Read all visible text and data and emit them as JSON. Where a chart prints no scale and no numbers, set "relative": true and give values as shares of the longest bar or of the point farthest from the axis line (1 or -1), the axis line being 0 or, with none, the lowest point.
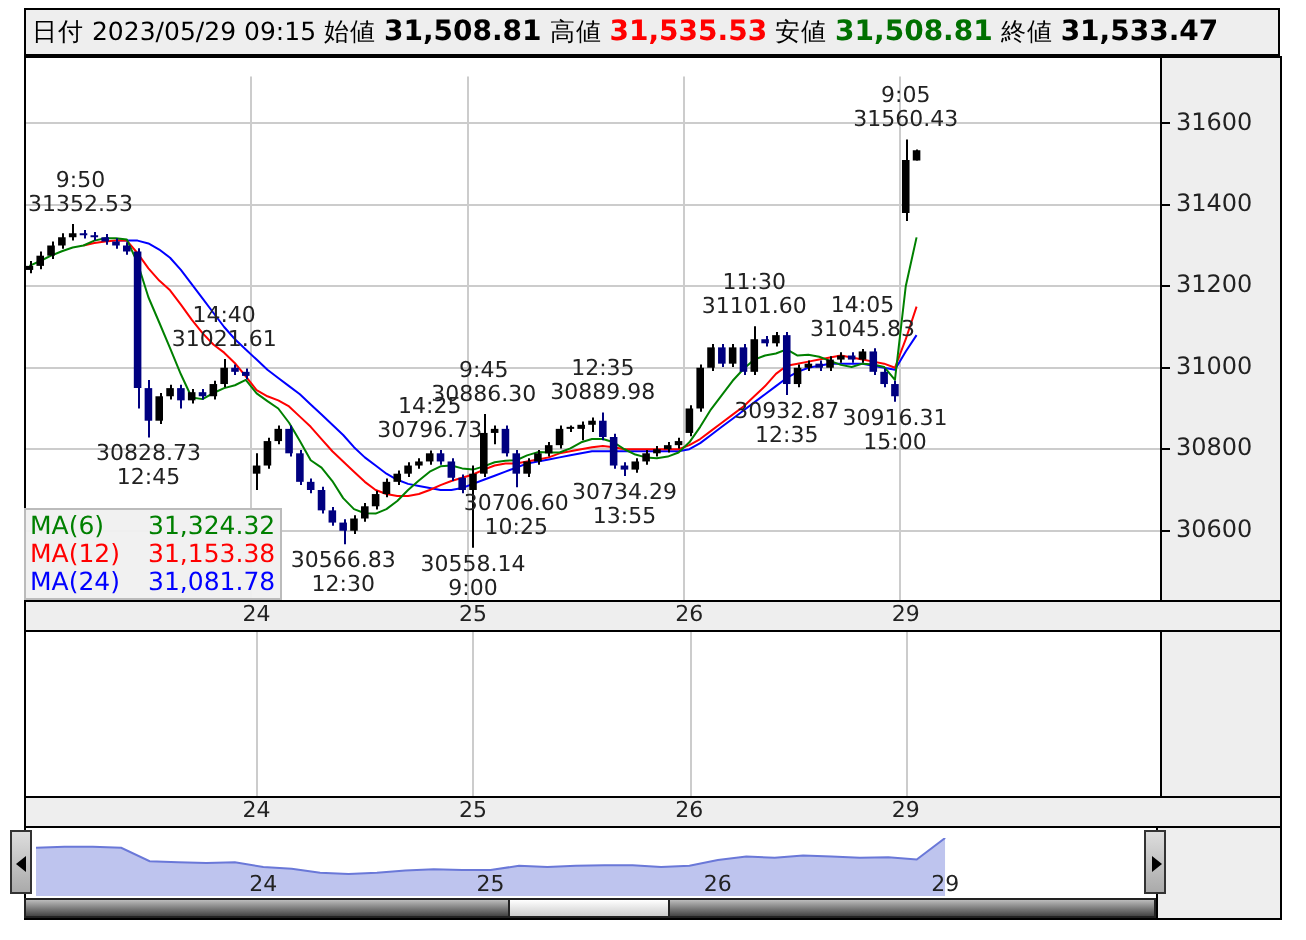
{
  "chart_data": [
    {
      "type": "candlestick",
      "title": "日付 2023/05/29 09:15",
      "annotations": [
        "始値 31,508.81",
        "高値 31,535.53",
        "安値 31,508.81",
        "終値 31,533.47",
        {
          "text": "9:50\n31352.53",
          "y": 31352.53
        },
        {
          "text": "30828.73\n12:45",
          "y": 30828.73
        },
        {
          "text": "14:40\n31021.61",
          "y": 31021.61
        },
        {
          "text": "30566.83\n12:30",
          "y": 30566.83
        },
        {
          "text": "14:25\n30796.73",
          "y": 30796.73
        },
        {
          "text": "30558.14\n9:00",
          "y": 30558.14
        },
        {
          "text": "9:45\n30886.30",
          "y": 30886.3
        },
        {
          "text": "30706.60\n10:25",
          "y": 30706.6
        },
        {
          "text": "12:35\n30889.98",
          "y": 30889.98
        },
        {
          "text": "30734.29\n13:55",
          "y": 30734.29
        },
        {
          "text": "11:30\n31101.60",
          "y": 31101.6
        },
        {
          "text": "30932.87\n12:35",
          "y": 30932.87
        },
        {
          "text": "14:05\n31045.83",
          "y": 31045.83
        },
        {
          "text": "30916.31\n15:00",
          "y": 30916.31
        },
        {
          "text": "9:05\n31560.43",
          "y": 31560.43
        }
      ],
      "categories": [
        null,
        null,
        null,
        null,
        null,
        null,
        null,
        null,
        null,
        null,
        null,
        null,
        null,
        null,
        null,
        null,
        null,
        null,
        null,
        null,
        null,
        "24",
        null,
        null,
        null,
        null,
        null,
        null,
        null,
        null,
        null,
        null,
        null,
        null,
        null,
        null,
        null,
        null,
        null,
        null,
        null,
        "25",
        null,
        null,
        null,
        null,
        null,
        null,
        null,
        null,
        null,
        null,
        null,
        null,
        null,
        null,
        null,
        null,
        null,
        null,
        null,
        "26",
        null,
        null,
        null,
        null,
        null,
        null,
        null,
        null,
        null,
        null,
        null,
        null,
        null,
        null,
        null,
        null,
        null,
        null,
        null,
        "29",
        null,
        null,
        null,
        null,
        null,
        null,
        null,
        null,
        null,
        null,
        null,
        null,
        null,
        null,
        null,
        null,
        null,
        null,
        null,
        null,
        null,
        null,
        null
      ],
      "colors": [
        "#000000",
        "#000000",
        "#000000",
        "#000000",
        "#000000",
        "#000080",
        "#000080",
        "#000080",
        "#000080",
        "#000080",
        "#000080",
        "#000080",
        "#000000",
        "#000000",
        "#000080",
        "#000000",
        "#000080",
        "#000000",
        "#000000",
        "#000080",
        "#000080",
        "#000000",
        "#000000",
        "#000000",
        "#000080",
        "#000080",
        "#000080",
        "#000080",
        "#000080",
        "#000080",
        "#000000",
        "#000000",
        "#000000",
        "#000000",
        "#000000",
        "#000000",
        "#000000",
        "#000000",
        "#000080",
        "#000080",
        "#000080",
        "#000000",
        "#000000",
        "#000000",
        "#000080",
        "#000080",
        "#000000",
        "#000000",
        "#000000",
        "#000000",
        "#000000",
        "#000000",
        "#000000",
        "#000080",
        "#000080",
        "#000080",
        "#000000",
        "#000000",
        "#000000",
        "#000000",
        "#000000",
        "#000000",
        "#000000",
        "#000000",
        "#000080",
        "#000000",
        "#000080",
        "#000000",
        "#000080",
        "#000000",
        "#000080",
        "#000000",
        "#000000",
        "#000080",
        "#000000",
        "#000000",
        "#000080",
        "#000000",
        "#000080",
        "#000080",
        "#000080",
        "#000000",
        "#000000",
        null,
        null,
        null,
        null,
        null,
        null,
        null,
        null,
        null,
        null,
        null,
        null,
        null,
        null,
        null,
        null,
        null,
        null,
        null,
        null,
        null,
        null
      ],
      "ohlc": [
        [
          31240,
          31262,
          31232,
          31250
        ],
        [
          31250,
          31285,
          31242,
          31275
        ],
        [
          31275,
          31310,
          31267,
          31300
        ],
        [
          31300,
          31330,
          31292,
          31320
        ],
        [
          31320,
          31352.53,
          31312,
          31330
        ],
        [
          31330,
          31338,
          31317,
          31325
        ],
        [
          31325,
          31333,
          31312,
          31320
        ],
        [
          31320,
          31328,
          31302,
          31310
        ],
        [
          31310,
          31318,
          31292,
          31300
        ],
        [
          31300,
          31308,
          31277,
          31285
        ],
        [
          31285,
          31293,
          30900,
          30950
        ],
        [
          30950,
          30970,
          30828.73,
          30870
        ],
        [
          30870,
          30938,
          30862,
          30930
        ],
        [
          30930,
          30958,
          30922,
          30950
        ],
        [
          30950,
          30958,
          30900,
          30920
        ],
        [
          30920,
          30948,
          30912,
          30940
        ],
        [
          30940,
          30948,
          30922,
          30930
        ],
        [
          30930,
          30968,
          30922,
          30960
        ],
        [
          30960,
          31021.61,
          30952,
          31000
        ],
        [
          31000,
          31008,
          30982,
          30990
        ],
        [
          30990,
          30998,
          30972,
          30980
        ],
        [
          30740,
          30790,
          30700,
          30760
        ],
        [
          30760,
          30828,
          30752,
          30820
        ],
        [
          30820,
          30858,
          30812,
          30850
        ],
        [
          30850,
          30858,
          30782,
          30790
        ],
        [
          30790,
          30798,
          30712,
          30720
        ],
        [
          30720,
          30728,
          30692,
          30700
        ],
        [
          30700,
          30708,
          30642,
          30650
        ],
        [
          30650,
          30658,
          30612,
          30620
        ],
        [
          30620,
          30628,
          30566.83,
          30600
        ],
        [
          30600,
          30638,
          30592,
          30630
        ],
        [
          30630,
          30668,
          30622,
          30660
        ],
        [
          30660,
          30698,
          30652,
          30690
        ],
        [
          30690,
          30728,
          30682,
          30720
        ],
        [
          30720,
          30748,
          30712,
          30740
        ],
        [
          30740,
          30768,
          30732,
          30760
        ],
        [
          30760,
          30778,
          30752,
          30770
        ],
        [
          30770,
          30796.73,
          30762,
          30790
        ],
        [
          30790,
          30798,
          30762,
          30770
        ],
        [
          30770,
          30778,
          30722,
          30730
        ],
        [
          30730,
          30738,
          30692,
          30700
        ],
        [
          30700,
          30760,
          30558.14,
          30740
        ],
        [
          30740,
          30886.3,
          30732,
          30840
        ],
        [
          30840,
          30858,
          30812,
          30850
        ],
        [
          30850,
          30858,
          30782,
          30790
        ],
        [
          30790,
          30798,
          30706.6,
          30740
        ],
        [
          30740,
          30778,
          30732,
          30770
        ],
        [
          30770,
          30798,
          30762,
          30790
        ],
        [
          30790,
          30818,
          30782,
          30810
        ],
        [
          30810,
          30858,
          30802,
          30850
        ],
        [
          30850,
          30858,
          30842,
          30850
        ],
        [
          30850,
          30868,
          30822,
          30860
        ],
        [
          30860,
          30878,
          30842,
          30870
        ],
        [
          30870,
          30889.98,
          30822,
          30830
        ],
        [
          30830,
          30838,
          30752,
          30760
        ],
        [
          30760,
          30768,
          30734.29,
          30750
        ],
        [
          30750,
          30778,
          30742,
          30770
        ],
        [
          30770,
          30798,
          30762,
          30790
        ],
        [
          30790,
          30808,
          30782,
          30800
        ],
        [
          30800,
          30818,
          30792,
          30810
        ],
        [
          30810,
          30828,
          30802,
          30820
        ],
        [
          30840,
          30908,
          30832,
          30900
        ],
        [
          30900,
          31008,
          30892,
          31000
        ],
        [
          31000,
          31058,
          30992,
          31050
        ],
        [
          31050,
          31058,
          31002,
          31010
        ],
        [
          31010,
          31058,
          31002,
          31050
        ],
        [
          31050,
          31058,
          30982,
          30990
        ],
        [
          30990,
          31101.6,
          30982,
          31070
        ],
        [
          31070,
          31078,
          31052,
          31060
        ],
        [
          31060,
          31088,
          31052,
          31080
        ],
        [
          31080,
          31088,
          30932.87,
          30960
        ],
        [
          30960,
          31008,
          30952,
          31000
        ],
        [
          31000,
          31018,
          30992,
          31010
        ],
        [
          31010,
          31018,
          30992,
          31000
        ],
        [
          31000,
          31028,
          30992,
          31020
        ],
        [
          31020,
          31038,
          31012,
          31030
        ],
        [
          31030,
          31038,
          31012,
          31020
        ],
        [
          31020,
          31045.83,
          31012,
          31040
        ],
        [
          31040,
          31048,
          30982,
          30990
        ],
        [
          30990,
          30998,
          30952,
          30960
        ],
        [
          30960,
          30968,
          30916.31,
          30930
        ],
        [
          31380,
          31560.43,
          31360,
          31510
        ],
        [
          31508.81,
          31535.53,
          31508.81,
          31533.47
        ],
        null,
        null,
        null,
        null,
        null,
        null,
        null,
        null,
        null,
        null,
        null,
        null,
        null,
        null,
        null,
        null,
        null,
        null,
        null,
        null,
        null,
        null
      ],
      "series": [
        {
          "name": "MA(6) 31,324.32",
          "type": "line",
          "color": "#008000",
          "values": [
            31250,
            31262,
            31275,
            31286,
            31295,
            31300,
            31312,
            31318,
            31318,
            31315,
            31257,
            31173,
            31111,
            31048,
            30984,
            30927,
            30923,
            30938,
            30950,
            30957,
            30970,
            30937,
            30918,
            30900,
            30865,
            30820,
            30773,
            30755,
            30722,
            30680,
            30653,
            30643,
            30642,
            30653,
            30673,
            30700,
            30723,
            30745,
            30758,
            30760,
            30753,
            30750,
            30758,
            30768,
            30772,
            30773,
            30785,
            30793,
            30792,
            30792,
            30802,
            30817,
            30825,
            30825,
            30817,
            30800,
            30787,
            30780,
            30778,
            30782,
            30792,
            30817,
            30855,
            30898,
            30933,
            30968,
            30997,
            31020,
            31030,
            31035,
            31045,
            31030,
            31032,
            31027,
            31017,
            31007,
            31002,
            31010,
            31008,
            31002,
            30970,
            31200,
            31320,
            null,
            null,
            null,
            null,
            null,
            null,
            null,
            null,
            null,
            null,
            null,
            null,
            null,
            null,
            null,
            null,
            null,
            null,
            null,
            null,
            null,
            null
          ]
        },
        {
          "name": "MA(12) 31,153.38",
          "type": "line",
          "color": "#ff0000",
          "values": [
            null,
            null,
            null,
            null,
            null,
            31300,
            31306,
            31310,
            31312,
            31312,
            31281,
            31244,
            31214,
            31190,
            31155,
            31118,
            31085,
            31057,
            31037,
            31011,
            30979,
            30945,
            30930,
            30920,
            30905,
            30880,
            30855,
            30825,
            30795,
            30770,
            30745,
            30720,
            30700,
            30690,
            30685,
            30685,
            30690,
            30700,
            30712,
            30722,
            30730,
            30738,
            30750,
            30760,
            30765,
            30765,
            30770,
            30775,
            30780,
            30790,
            30795,
            30800,
            30805,
            30808,
            30805,
            30800,
            30800,
            30800,
            30800,
            30800,
            30800,
            30810,
            30825,
            30845,
            30865,
            30885,
            30905,
            30930,
            30955,
            30985,
            31005,
            31010,
            31015,
            31020,
            31025,
            31030,
            31025,
            31020,
            31015,
            31010,
            31000,
            31070,
            31150,
            null,
            null,
            null,
            null,
            null,
            null,
            null,
            null,
            null,
            null,
            null,
            null,
            null,
            null,
            null,
            null,
            null,
            null,
            null,
            null,
            null,
            null
          ]
        },
        {
          "name": "MA(24) 31,081.78",
          "type": "line",
          "color": "#0000ff",
          "values": [
            null,
            null,
            null,
            null,
            null,
            null,
            null,
            null,
            31312,
            31312,
            31312,
            31305,
            31290,
            31270,
            31240,
            31205,
            31170,
            31135,
            31100,
            31070,
            31045,
            31020,
            30995,
            30975,
            30955,
            30935,
            30910,
            30885,
            30860,
            30835,
            30805,
            30780,
            30760,
            30740,
            30725,
            30715,
            30710,
            30705,
            30700,
            30700,
            30705,
            30715,
            30725,
            30735,
            30745,
            30755,
            30765,
            30770,
            30775,
            30780,
            30785,
            30790,
            30795,
            30795,
            30795,
            30795,
            30795,
            30795,
            30795,
            30795,
            30795,
            30800,
            30815,
            30835,
            30855,
            30875,
            30895,
            30915,
            30935,
            30955,
            30975,
            30990,
            31000,
            31005,
            31010,
            31010,
            31010,
            31010,
            31005,
            31000,
            30995,
            31040,
            31080,
            null,
            null,
            null,
            null,
            null,
            null,
            null,
            null,
            null,
            null,
            null,
            null,
            null,
            null,
            null,
            null,
            null,
            null,
            null,
            null,
            null,
            null
          ]
        }
      ],
      "ylim": [
        30430,
        31715
      ],
      "yticks": [
        30600,
        30800,
        31000,
        31200,
        31400,
        31600
      ],
      "grid": true,
      "legend": "bottom left"
    },
    {
      "type": "area",
      "relative": true,
      "color": "#6a78d8",
      "categories": [
        null,
        null,
        null,
        null,
        null,
        null,
        null,
        null,
        "24",
        null,
        null,
        null,
        null,
        null,
        null,
        null,
        "25",
        null,
        null,
        null,
        null,
        null,
        null,
        null,
        "26",
        null,
        null,
        null,
        null,
        null,
        null,
        null,
        "29",
        null,
        null,
        null,
        null,
        null,
        null,
        null
      ],
      "values": [
        0.83,
        0.85,
        0.85,
        0.83,
        0.6,
        0.58,
        0.57,
        0.58,
        0.5,
        0.47,
        0.4,
        0.38,
        0.4,
        0.44,
        0.46,
        0.45,
        0.45,
        0.52,
        0.5,
        0.52,
        0.53,
        0.53,
        0.5,
        0.52,
        0.62,
        0.68,
        0.66,
        0.7,
        0.68,
        0.66,
        0.67,
        0.63,
        1,
        null,
        null,
        null,
        null,
        null,
        null,
        null
      ]
    }
  ]
}
